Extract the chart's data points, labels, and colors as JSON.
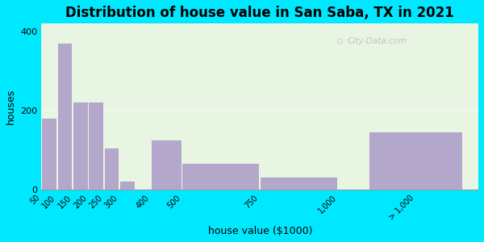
{
  "title": "Distribution of house value in San Saba, TX in 2021",
  "xlabel": "house value ($1000)",
  "ylabel": "houses",
  "tick_labels": [
    "50",
    "100",
    "150",
    "200",
    "250",
    "300",
    "400",
    "500",
    "750",
    "1,000",
    "> 1,000"
  ],
  "tick_positions": [
    50,
    100,
    150,
    200,
    250,
    300,
    400,
    500,
    750,
    1000,
    1250
  ],
  "bar_lefts": [
    50,
    100,
    150,
    200,
    250,
    300,
    400,
    500,
    750,
    1000,
    1100
  ],
  "bar_widths": [
    50,
    50,
    50,
    50,
    50,
    50,
    100,
    250,
    250,
    100,
    300
  ],
  "bar_heights": [
    180,
    370,
    220,
    220,
    105,
    20,
    125,
    65,
    30,
    0,
    145
  ],
  "bar_color": "#b3a8cc",
  "bg_color_outer": "#00e8ff",
  "bg_color_inner": "#e8f5e2",
  "ylim": [
    0,
    420
  ],
  "yticks": [
    0,
    200,
    400
  ],
  "xlim": [
    50,
    1450
  ],
  "title_fontsize": 12,
  "axis_label_fontsize": 9,
  "watermark": "City-Data.com"
}
